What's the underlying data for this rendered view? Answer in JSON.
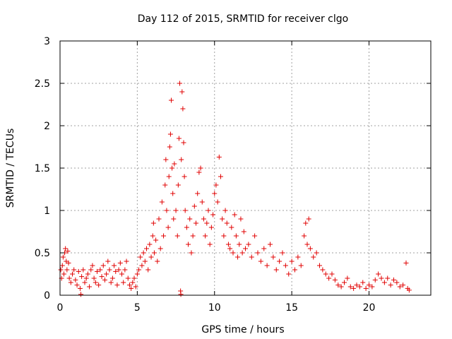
{
  "chart_data": {
    "type": "scatter",
    "title": "Day 112 of 2015, SRMTID for receiver clgo",
    "xlabel": "GPS time / hours",
    "ylabel": "SRMTID / TECUs",
    "xlim": [
      0,
      24
    ],
    "ylim": [
      0,
      3
    ],
    "xticks": [
      0,
      5,
      10,
      15,
      20
    ],
    "xtick_labels": [
      "0",
      "5",
      "10",
      "15",
      "20"
    ],
    "yticks": [
      0,
      0.5,
      1,
      1.5,
      2,
      2.5,
      3
    ],
    "ytick_labels": [
      "0",
      "0.5",
      "1",
      "1.5",
      "2",
      "2.5",
      "3"
    ],
    "grid": true,
    "marker": "plus",
    "color": "#e00000",
    "series": [
      {
        "name": "SRMTID",
        "points": [
          [
            0.05,
            0.3
          ],
          [
            0.1,
            0.2
          ],
          [
            0.15,
            0.35
          ],
          [
            0.2,
            0.45
          ],
          [
            0.25,
            0.25
          ],
          [
            0.3,
            0.5
          ],
          [
            0.35,
            0.55
          ],
          [
            0.4,
            0.4
          ],
          [
            0.45,
            0.3
          ],
          [
            0.5,
            0.52
          ],
          [
            0.55,
            0.38
          ],
          [
            0.6,
            0.2
          ],
          [
            0.7,
            0.15
          ],
          [
            0.8,
            0.25
          ],
          [
            0.9,
            0.3
          ],
          [
            1.0,
            0.18
          ],
          [
            1.1,
            0.12
          ],
          [
            1.2,
            0.28
          ],
          [
            1.3,
            0.08
          ],
          [
            1.35,
            0.01
          ],
          [
            1.4,
            0.22
          ],
          [
            1.5,
            0.3
          ],
          [
            1.6,
            0.15
          ],
          [
            1.7,
            0.2
          ],
          [
            1.8,
            0.25
          ],
          [
            1.9,
            0.1
          ],
          [
            2.0,
            0.3
          ],
          [
            2.1,
            0.35
          ],
          [
            2.2,
            0.2
          ],
          [
            2.3,
            0.15
          ],
          [
            2.4,
            0.28
          ],
          [
            2.5,
            0.12
          ],
          [
            2.6,
            0.3
          ],
          [
            2.7,
            0.22
          ],
          [
            2.8,
            0.35
          ],
          [
            2.9,
            0.18
          ],
          [
            3.0,
            0.25
          ],
          [
            3.1,
            0.4
          ],
          [
            3.2,
            0.3
          ],
          [
            3.3,
            0.15
          ],
          [
            3.4,
            0.2
          ],
          [
            3.5,
            0.35
          ],
          [
            3.6,
            0.28
          ],
          [
            3.7,
            0.12
          ],
          [
            3.8,
            0.3
          ],
          [
            3.9,
            0.38
          ],
          [
            4.0,
            0.25
          ],
          [
            4.1,
            0.15
          ],
          [
            4.2,
            0.3
          ],
          [
            4.3,
            0.4
          ],
          [
            4.4,
            0.2
          ],
          [
            4.5,
            0.12
          ],
          [
            4.6,
            0.08
          ],
          [
            4.7,
            0.15
          ],
          [
            4.8,
            0.2
          ],
          [
            4.9,
            0.1
          ],
          [
            5.0,
            0.25
          ],
          [
            5.1,
            0.3
          ],
          [
            5.2,
            0.45
          ],
          [
            5.3,
            0.35
          ],
          [
            5.4,
            0.5
          ],
          [
            5.5,
            0.4
          ],
          [
            5.6,
            0.55
          ],
          [
            5.7,
            0.3
          ],
          [
            5.8,
            0.6
          ],
          [
            5.9,
            0.45
          ],
          [
            6.0,
            0.7
          ],
          [
            6.05,
            0.85
          ],
          [
            6.1,
            0.5
          ],
          [
            6.2,
            0.65
          ],
          [
            6.3,
            0.4
          ],
          [
            6.4,
            0.9
          ],
          [
            6.5,
            0.55
          ],
          [
            6.6,
            1.1
          ],
          [
            6.7,
            0.7
          ],
          [
            6.8,
            1.3
          ],
          [
            6.85,
            1.6
          ],
          [
            6.9,
            1.0
          ],
          [
            7.0,
            0.8
          ],
          [
            7.05,
            1.4
          ],
          [
            7.1,
            1.75
          ],
          [
            7.15,
            1.9
          ],
          [
            7.2,
            2.3
          ],
          [
            7.25,
            1.5
          ],
          [
            7.3,
            1.2
          ],
          [
            7.35,
            0.9
          ],
          [
            7.4,
            1.55
          ],
          [
            7.5,
            1.0
          ],
          [
            7.6,
            0.7
          ],
          [
            7.65,
            1.3
          ],
          [
            7.7,
            1.85
          ],
          [
            7.75,
            2.5
          ],
          [
            7.8,
            0.05
          ],
          [
            7.82,
            0.01
          ],
          [
            7.85,
            1.6
          ],
          [
            7.9,
            2.4
          ],
          [
            7.95,
            2.2
          ],
          [
            8.0,
            1.8
          ],
          [
            8.05,
            1.4
          ],
          [
            8.1,
            1.0
          ],
          [
            8.2,
            0.8
          ],
          [
            8.3,
            0.6
          ],
          [
            8.4,
            0.9
          ],
          [
            8.5,
            0.5
          ],
          [
            8.6,
            0.7
          ],
          [
            8.7,
            1.05
          ],
          [
            8.8,
            0.85
          ],
          [
            8.9,
            1.2
          ],
          [
            9.0,
            1.45
          ],
          [
            9.1,
            1.5
          ],
          [
            9.2,
            1.1
          ],
          [
            9.3,
            0.9
          ],
          [
            9.4,
            0.7
          ],
          [
            9.5,
            0.85
          ],
          [
            9.6,
            1.0
          ],
          [
            9.7,
            0.6
          ],
          [
            9.8,
            0.8
          ],
          [
            9.9,
            0.95
          ],
          [
            10.0,
            1.2
          ],
          [
            10.1,
            1.3
          ],
          [
            10.2,
            1.1
          ],
          [
            10.3,
            1.63
          ],
          [
            10.4,
            1.4
          ],
          [
            10.5,
            0.9
          ],
          [
            10.6,
            0.7
          ],
          [
            10.7,
            1.0
          ],
          [
            10.8,
            0.85
          ],
          [
            10.9,
            0.6
          ],
          [
            11.0,
            0.55
          ],
          [
            11.1,
            0.8
          ],
          [
            11.2,
            0.5
          ],
          [
            11.3,
            0.95
          ],
          [
            11.4,
            0.7
          ],
          [
            11.5,
            0.45
          ],
          [
            11.6,
            0.6
          ],
          [
            11.7,
            0.9
          ],
          [
            11.8,
            0.5
          ],
          [
            11.9,
            0.75
          ],
          [
            12.0,
            0.55
          ],
          [
            12.2,
            0.6
          ],
          [
            12.4,
            0.45
          ],
          [
            12.6,
            0.7
          ],
          [
            12.8,
            0.5
          ],
          [
            13.0,
            0.4
          ],
          [
            13.2,
            0.55
          ],
          [
            13.4,
            0.35
          ],
          [
            13.6,
            0.6
          ],
          [
            13.8,
            0.45
          ],
          [
            14.0,
            0.3
          ],
          [
            14.2,
            0.4
          ],
          [
            14.4,
            0.5
          ],
          [
            14.6,
            0.35
          ],
          [
            14.8,
            0.25
          ],
          [
            15.0,
            0.4
          ],
          [
            15.2,
            0.3
          ],
          [
            15.4,
            0.45
          ],
          [
            15.6,
            0.35
          ],
          [
            15.8,
            0.7
          ],
          [
            15.9,
            0.85
          ],
          [
            16.0,
            0.6
          ],
          [
            16.1,
            0.9
          ],
          [
            16.2,
            0.55
          ],
          [
            16.4,
            0.45
          ],
          [
            16.6,
            0.5
          ],
          [
            16.8,
            0.35
          ],
          [
            17.0,
            0.3
          ],
          [
            17.2,
            0.25
          ],
          [
            17.4,
            0.2
          ],
          [
            17.6,
            0.25
          ],
          [
            17.8,
            0.18
          ],
          [
            18.0,
            0.12
          ],
          [
            18.2,
            0.1
          ],
          [
            18.4,
            0.15
          ],
          [
            18.6,
            0.2
          ],
          [
            18.8,
            0.1
          ],
          [
            19.0,
            0.08
          ],
          [
            19.2,
            0.12
          ],
          [
            19.4,
            0.1
          ],
          [
            19.6,
            0.15
          ],
          [
            19.8,
            0.08
          ],
          [
            20.0,
            0.12
          ],
          [
            20.2,
            0.1
          ],
          [
            20.4,
            0.18
          ],
          [
            20.6,
            0.25
          ],
          [
            20.8,
            0.2
          ],
          [
            21.0,
            0.15
          ],
          [
            21.2,
            0.2
          ],
          [
            21.4,
            0.12
          ],
          [
            21.6,
            0.18
          ],
          [
            21.8,
            0.15
          ],
          [
            22.0,
            0.1
          ],
          [
            22.2,
            0.12
          ],
          [
            22.4,
            0.38
          ],
          [
            22.5,
            0.08
          ],
          [
            22.6,
            0.06
          ]
        ]
      }
    ]
  }
}
